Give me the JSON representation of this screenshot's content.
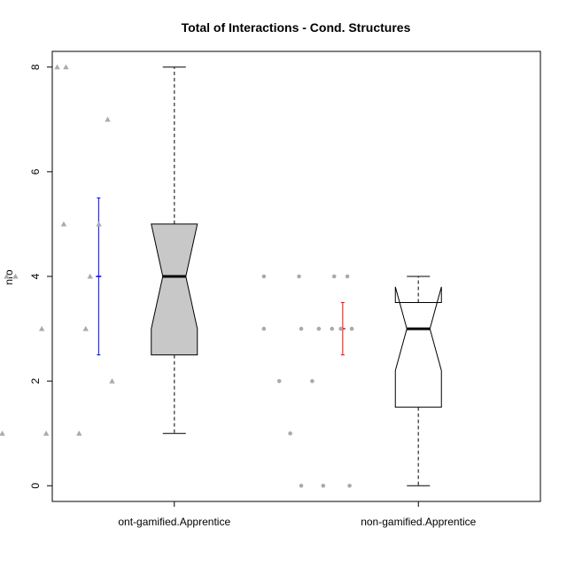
{
  "chart_data": {
    "type": "boxplot",
    "title": "Total of Interactions - Cond. Structures",
    "xlabel": "",
    "ylabel": "nro",
    "ylim": [
      -0.3,
      8.3
    ],
    "yticks": [
      0,
      2,
      4,
      6,
      8
    ],
    "grid": false,
    "legend": "none",
    "categories": [
      "ont-gamified.Apprentice",
      "non-gamified.Apprentice"
    ],
    "groups": [
      {
        "label": "ont-gamified.Apprentice",
        "box_fill": "#c8c8c8",
        "box": {
          "min": 1,
          "q1": 2.5,
          "median": 4,
          "q3": 5,
          "max": 8
        },
        "notch": [
          3,
          5
        ],
        "mean_sd": {
          "mean": 4,
          "low": 2.5,
          "high": 5.5
        },
        "sd_color": "#0000ff",
        "point_shape": "triangle",
        "points": [
          {
            "x": -0.3,
            "y": 1
          },
          {
            "x": -0.1,
            "y": 1
          },
          {
            "x": 0.05,
            "y": 1
          },
          {
            "x": 0.2,
            "y": 2
          },
          {
            "x": -0.12,
            "y": 3
          },
          {
            "x": 0.08,
            "y": 3
          },
          {
            "x": -0.28,
            "y": 4
          },
          {
            "x": -0.24,
            "y": 4
          },
          {
            "x": 0.1,
            "y": 4
          },
          {
            "x": -0.02,
            "y": 5
          },
          {
            "x": 0.14,
            "y": 5
          },
          {
            "x": 0.18,
            "y": 7
          },
          {
            "x": -0.05,
            "y": 8
          },
          {
            "x": -0.01,
            "y": 8
          }
        ]
      },
      {
        "label": "non-gamified.Apprentice",
        "box_fill": "#ffffff",
        "box": {
          "min": 0,
          "q1": 1.5,
          "median": 3,
          "q3": 3.5,
          "max": 4
        },
        "notch": [
          2.2,
          3.8
        ],
        "mean_sd": {
          "mean": 3,
          "low": 2.5,
          "high": 3.5
        },
        "sd_color": "#ff0000",
        "point_shape": "circle",
        "points": [
          {
            "x": -0.05,
            "y": 0
          },
          {
            "x": 0.05,
            "y": 0
          },
          {
            "x": 0.17,
            "y": 0
          },
          {
            "x": -0.1,
            "y": 1
          },
          {
            "x": -0.15,
            "y": 2
          },
          {
            "x": 0.0,
            "y": 2
          },
          {
            "x": -0.22,
            "y": 3
          },
          {
            "x": -0.05,
            "y": 3
          },
          {
            "x": 0.03,
            "y": 3
          },
          {
            "x": 0.09,
            "y": 3
          },
          {
            "x": 0.13,
            "y": 3
          },
          {
            "x": 0.18,
            "y": 3
          },
          {
            "x": -0.22,
            "y": 4
          },
          {
            "x": -0.06,
            "y": 4
          },
          {
            "x": 0.1,
            "y": 4
          },
          {
            "x": 0.16,
            "y": 4
          }
        ]
      }
    ]
  }
}
